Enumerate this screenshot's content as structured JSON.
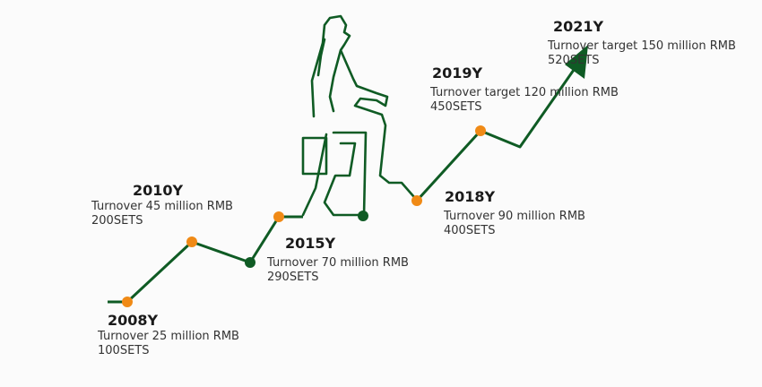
{
  "colors": {
    "line": "#0f5b24",
    "marker_orange": "#f08a16",
    "marker_green": "#0f5b24",
    "text": "#333333"
  },
  "milestones": [
    {
      "year": "2008Y",
      "turnover": "Turnover 25 million  RMB",
      "sets": "100SETS"
    },
    {
      "year": "2010Y",
      "turnover": "Turnover 45 million  RMB",
      "sets": "200SETS"
    },
    {
      "year": "2015Y",
      "turnover": "Turnover 70 million  RMB",
      "sets": "290SETS"
    },
    {
      "year": "2018Y",
      "turnover": "Turnover 90 million  RMB",
      "sets": "400SETS"
    },
    {
      "year": "2019Y",
      "turnover": "Turnover target 120 million  RMB",
      "sets": "450SETS"
    },
    {
      "year": "2021Y",
      "turnover": "Turnover target 150 million  RMB",
      "sets": "520SETS"
    }
  ]
}
